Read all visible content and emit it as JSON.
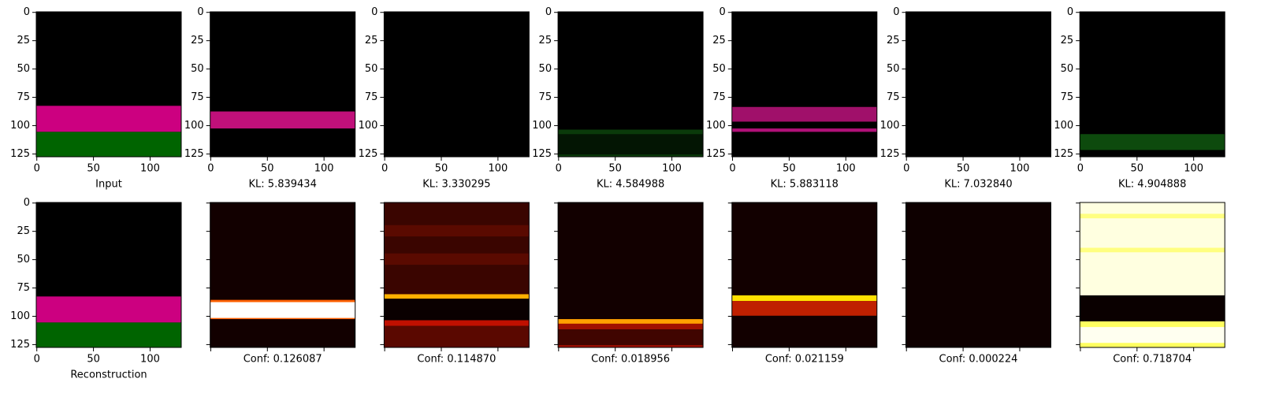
{
  "chart_data": {
    "type": "image-grid",
    "panels": [
      {
        "xlabel": "Input",
        "xlim": [
          -0.5,
          127.5
        ],
        "ylim": [
          127.5,
          -0.5
        ],
        "xticks": [
          0,
          50,
          100
        ],
        "yticks": [
          0,
          25,
          50,
          75,
          100,
          125
        ],
        "show_tick_labels": true
      },
      {
        "xlabel": "KL: 5.839434",
        "xlim": [
          -0.5,
          127.5
        ],
        "ylim": [
          127.5,
          -0.5
        ],
        "xticks": [
          0,
          50,
          100
        ],
        "yticks": [
          0,
          25,
          50,
          75,
          100,
          125
        ],
        "show_tick_labels": true
      },
      {
        "xlabel": "KL: 3.330295",
        "xlim": [
          -0.5,
          127.5
        ],
        "ylim": [
          127.5,
          -0.5
        ],
        "xticks": [
          0,
          50,
          100
        ],
        "yticks": [
          0,
          25,
          50,
          75,
          100,
          125
        ],
        "show_tick_labels": true
      },
      {
        "xlabel": "KL: 4.584988",
        "xlim": [
          -0.5,
          127.5
        ],
        "ylim": [
          127.5,
          -0.5
        ],
        "xticks": [
          0,
          50,
          100
        ],
        "yticks": [
          0,
          25,
          50,
          75,
          100,
          125
        ],
        "show_tick_labels": true
      },
      {
        "xlabel": "KL: 5.883118",
        "xlim": [
          -0.5,
          127.5
        ],
        "ylim": [
          127.5,
          -0.5
        ],
        "xticks": [
          0,
          50,
          100
        ],
        "yticks": [
          0,
          25,
          50,
          75,
          100,
          125
        ],
        "show_tick_labels": true
      },
      {
        "xlabel": "KL: 7.032840",
        "xlim": [
          -0.5,
          127.5
        ],
        "ylim": [
          127.5,
          -0.5
        ],
        "xticks": [
          0,
          50,
          100
        ],
        "yticks": [
          0,
          25,
          50,
          75,
          100,
          125
        ],
        "show_tick_labels": true
      },
      {
        "xlabel": "KL: 4.904888",
        "xlim": [
          -0.5,
          127.5
        ],
        "ylim": [
          127.5,
          -0.5
        ],
        "xticks": [
          0,
          50,
          100
        ],
        "yticks": [
          0,
          25,
          50,
          75,
          100,
          125
        ],
        "show_tick_labels": true
      },
      {
        "xlabel": "Reconstruction",
        "xlim": [
          -0.5,
          127.5
        ],
        "ylim": [
          127.5,
          -0.5
        ],
        "xticks": [
          0,
          50,
          100
        ],
        "yticks": [
          0,
          25,
          50,
          75,
          100,
          125
        ],
        "show_tick_labels": true
      },
      {
        "xlabel": "Conf: 0.126087",
        "xlim": [
          -0.5,
          127.5
        ],
        "ylim": [
          127.5,
          -0.5
        ],
        "xticks": [
          0,
          50,
          100
        ],
        "yticks": [
          0,
          25,
          50,
          75,
          100,
          125
        ],
        "show_tick_labels": false
      },
      {
        "xlabel": "Conf: 0.114870",
        "xlim": [
          -0.5,
          127.5
        ],
        "ylim": [
          127.5,
          -0.5
        ],
        "xticks": [
          0,
          50,
          100
        ],
        "yticks": [
          0,
          25,
          50,
          75,
          100,
          125
        ],
        "show_tick_labels": false
      },
      {
        "xlabel": "Conf: 0.018956",
        "xlim": [
          -0.5,
          127.5
        ],
        "ylim": [
          127.5,
          -0.5
        ],
        "xticks": [
          0,
          50,
          100
        ],
        "yticks": [
          0,
          25,
          50,
          75,
          100,
          125
        ],
        "show_tick_labels": false
      },
      {
        "xlabel": "Conf: 0.021159",
        "xlim": [
          -0.5,
          127.5
        ],
        "ylim": [
          127.5,
          -0.5
        ],
        "xticks": [
          0,
          50,
          100
        ],
        "yticks": [
          0,
          25,
          50,
          75,
          100,
          125
        ],
        "show_tick_labels": false
      },
      {
        "xlabel": "Conf: 0.000224",
        "xlim": [
          -0.5,
          127.5
        ],
        "ylim": [
          127.5,
          -0.5
        ],
        "xticks": [
          0,
          50,
          100
        ],
        "yticks": [
          0,
          25,
          50,
          75,
          100,
          125
        ],
        "show_tick_labels": false
      },
      {
        "xlabel": "Conf: 0.718704",
        "xlim": [
          -0.5,
          127.5
        ],
        "ylim": [
          127.5,
          -0.5
        ],
        "xticks": [
          0,
          50,
          100
        ],
        "yticks": [
          0,
          25,
          50,
          75,
          100,
          125
        ],
        "show_tick_labels": false
      }
    ]
  }
}
